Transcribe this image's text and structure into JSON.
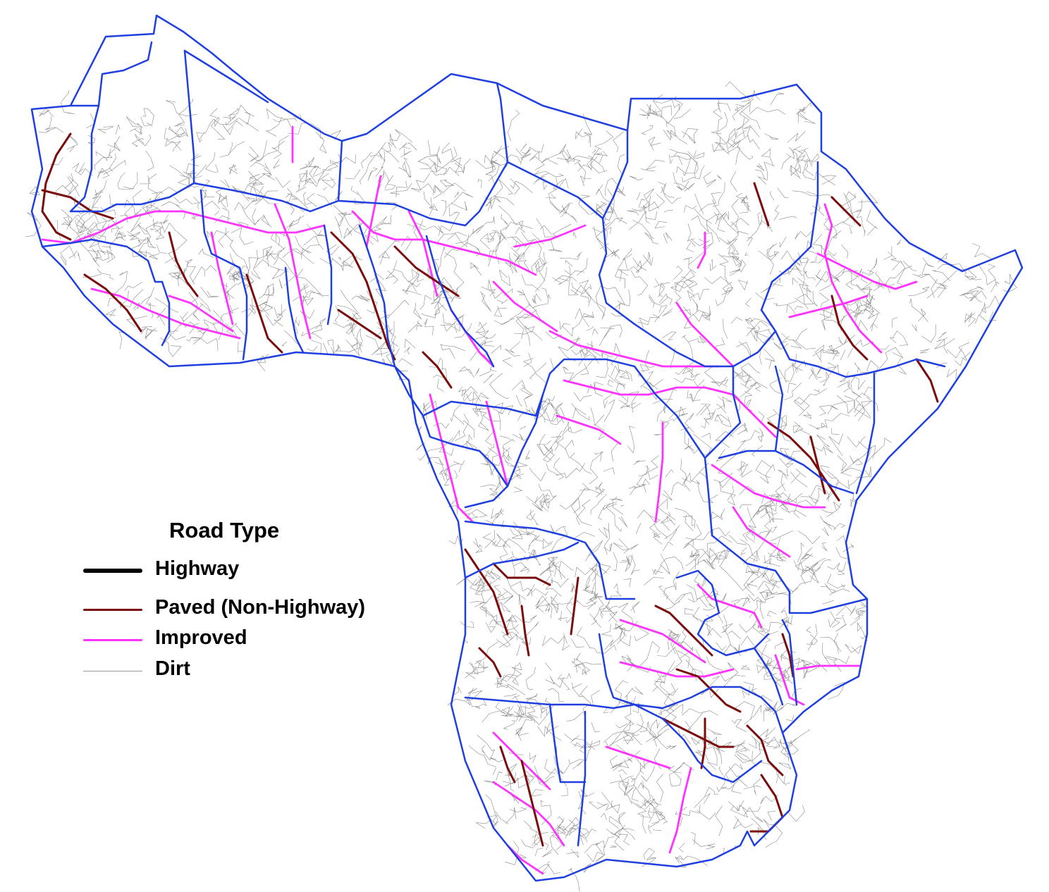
{
  "legend": {
    "title": "Road Type",
    "items": [
      {
        "label": "Highway",
        "color": "#000000",
        "width": 6
      },
      {
        "label": "Paved (Non-Highway)",
        "color": "#7a0c0c",
        "width": 3
      },
      {
        "label": "Improved",
        "color": "#ff33ff",
        "width": 3
      },
      {
        "label": "Dirt",
        "color": "#999999",
        "width": 1
      }
    ]
  },
  "colors": {
    "border": "#1f3fe0",
    "dirt": "#8a8a8a",
    "paved": "#7a0c0c",
    "improved": "#ff33ff",
    "background": "#ffffff"
  }
}
